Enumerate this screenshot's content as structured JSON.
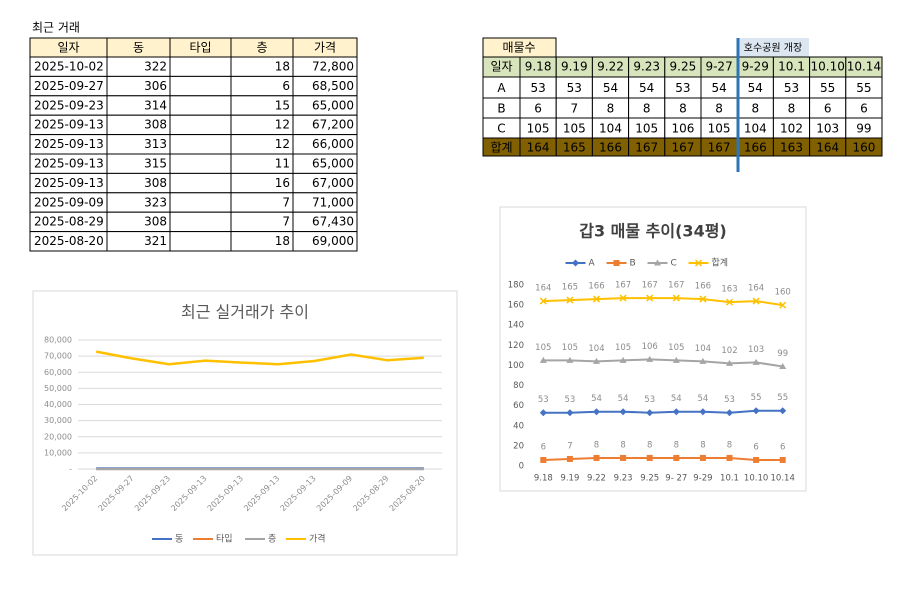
{
  "recent_table": {
    "title": "최근 거래",
    "header": [
      "일자",
      "동",
      "타입",
      "층",
      "가격"
    ],
    "rows": [
      [
        "2025-10-02",
        322,
        null,
        18,
        "72,800"
      ],
      [
        "2025-09-27",
        306,
        null,
        6,
        "68,500"
      ],
      [
        "2025-09-23",
        314,
        null,
        15,
        "65,000"
      ],
      [
        "2025-09-13",
        308,
        null,
        12,
        "67,200"
      ],
      [
        "2025-09-13",
        313,
        null,
        12,
        "66,000"
      ],
      [
        "2025-09-13",
        315,
        null,
        11,
        "65,000"
      ],
      [
        "2025-09-13",
        308,
        null,
        16,
        "67,000"
      ],
      [
        "2025-09-09",
        323,
        null,
        7,
        "71,000"
      ],
      [
        "2025-08-29",
        308,
        null,
        7,
        "67,430"
      ],
      [
        "2025-08-20",
        321,
        null,
        18,
        "69,000"
      ]
    ]
  },
  "sales_table": {
    "title": "매물수",
    "note": "호수공원 개장",
    "header_label": "일자",
    "columns": [
      "9.18",
      "9.19",
      "9.22",
      "9.23",
      "9.25",
      "9-27",
      "9-29",
      "10.1",
      "10.10",
      "10.14"
    ],
    "rows": [
      {
        "label": "A",
        "values": [
          53,
          53,
          54,
          54,
          53,
          54,
          54,
          53,
          55,
          55
        ]
      },
      {
        "label": "B",
        "values": [
          6,
          7,
          8,
          8,
          8,
          8,
          8,
          8,
          6,
          6
        ]
      },
      {
        "label": "C",
        "values": [
          105,
          105,
          104,
          105,
          106,
          105,
          104,
          102,
          103,
          99
        ]
      },
      {
        "label": "합계",
        "values": [
          164,
          165,
          166,
          167,
          167,
          167,
          166,
          163,
          164,
          160
        ]
      }
    ]
  },
  "chart_data": [
    {
      "type": "line",
      "title": "최근 실거래가 추이",
      "categories": [
        "2025-10-02",
        "2025-09-27",
        "2025-09-23",
        "2025-09-13",
        "2025-09-13",
        "2025-09-13",
        "2025-09-13",
        "2025-09-09",
        "2025-08-29",
        "2025-08-20"
      ],
      "series": [
        {
          "name": "동",
          "color": "#4472c4",
          "values": [
            322,
            306,
            314,
            308,
            313,
            315,
            308,
            323,
            308,
            321
          ]
        },
        {
          "name": "타입",
          "color": "#ed7d31",
          "values": [
            null,
            null,
            null,
            null,
            null,
            null,
            null,
            null,
            null,
            null
          ]
        },
        {
          "name": "층",
          "color": "#a5a5a5",
          "values": [
            18,
            6,
            15,
            12,
            12,
            11,
            16,
            7,
            7,
            18
          ]
        },
        {
          "name": "가격",
          "color": "#ffc000",
          "values": [
            72800,
            68500,
            65000,
            67200,
            66000,
            65000,
            67000,
            71000,
            67430,
            69000
          ]
        }
      ],
      "ylim": [
        0,
        80000
      ],
      "yticks": [
        {
          "value": 0,
          "label": "-"
        },
        {
          "value": 10000,
          "label": "10,000"
        },
        {
          "value": 20000,
          "label": "20,000"
        },
        {
          "value": 30000,
          "label": "30,000"
        },
        {
          "value": 40000,
          "label": "40,000"
        },
        {
          "value": 50000,
          "label": "50,000"
        },
        {
          "value": 60000,
          "label": "60,000"
        },
        {
          "value": 70000,
          "label": "70,000"
        },
        {
          "value": 80000,
          "label": "80,000"
        }
      ],
      "grid": true,
      "legend": "bottom"
    },
    {
      "type": "line",
      "title": "갑3 매물 추이(34평)",
      "categories": [
        "9.18",
        "9.19",
        "9.22",
        "9.23",
        "9.25",
        "9- 27",
        "9-29",
        "10.1",
        "10.10",
        "10.14"
      ],
      "series": [
        {
          "name": "A",
          "color": "#4472c4",
          "marker": "diamond",
          "values": [
            53,
            53,
            54,
            54,
            53,
            54,
            54,
            53,
            55,
            55
          ]
        },
        {
          "name": "B",
          "color": "#ed7d31",
          "marker": "square",
          "values": [
            6,
            7,
            8,
            8,
            8,
            8,
            8,
            8,
            6,
            6
          ]
        },
        {
          "name": "C",
          "color": "#a5a5a5",
          "marker": "triangle",
          "values": [
            105,
            105,
            104,
            105,
            106,
            105,
            104,
            102,
            103,
            99
          ]
        },
        {
          "name": "합계",
          "color": "#ffc000",
          "marker": "x",
          "values": [
            164,
            165,
            166,
            167,
            167,
            167,
            166,
            163,
            164,
            160
          ]
        }
      ],
      "ylim": [
        0,
        180
      ],
      "yticks": [
        0,
        20,
        40,
        60,
        80,
        100,
        120,
        140,
        160,
        180
      ],
      "grid": false,
      "legend": "top",
      "data_labels": true
    }
  ]
}
